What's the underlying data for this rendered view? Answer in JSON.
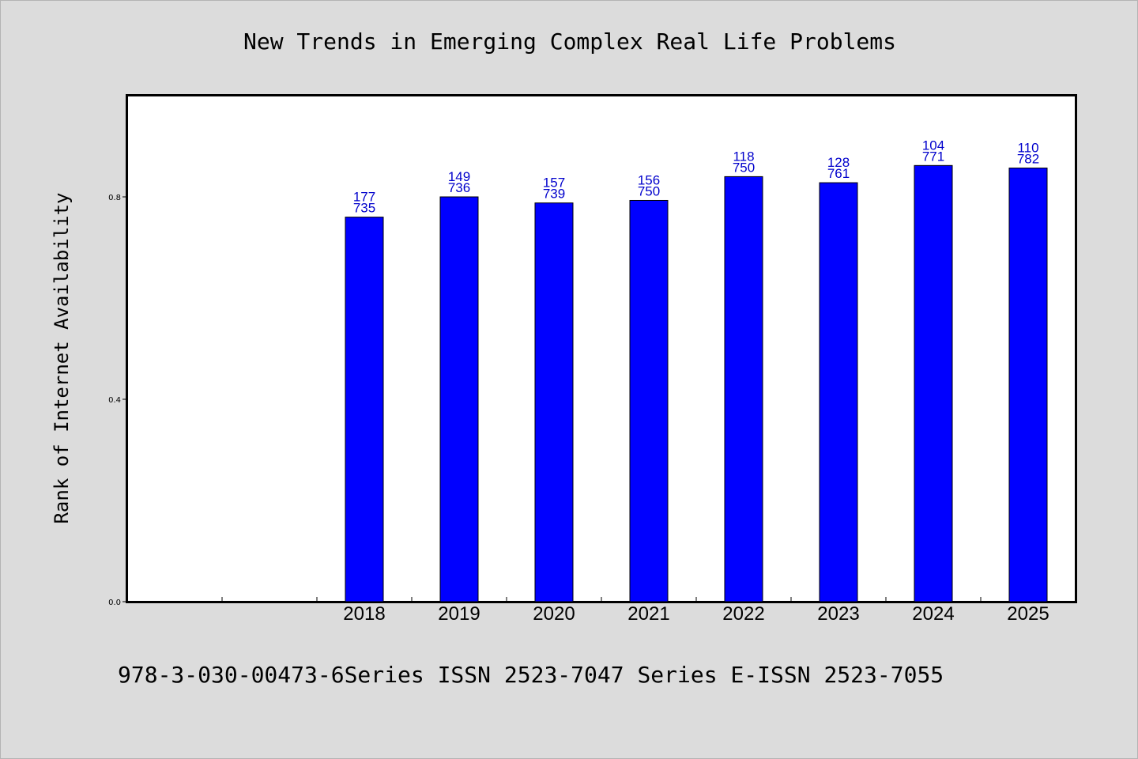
{
  "chart_data": {
    "type": "bar",
    "title": "New Trends in Emerging Complex Real Life Problems",
    "xlabel": "",
    "ylabel": "Rank of Internet Availability",
    "ylim": [
      0,
      1.0
    ],
    "yticks": [
      "0.0",
      "0.4",
      "0.8"
    ],
    "x_slots": [
      "",
      "",
      "2018",
      "2019",
      "2020",
      "2021",
      "2022",
      "2023",
      "2024",
      "2025"
    ],
    "categories": [
      "2018",
      "2019",
      "2020",
      "2021",
      "2022",
      "2023",
      "2024",
      "2025"
    ],
    "values": [
      0.76,
      0.8,
      0.788,
      0.793,
      0.84,
      0.828,
      0.862,
      0.857
    ],
    "data_labels": [
      [
        "177",
        "735"
      ],
      [
        "149",
        "736"
      ],
      [
        "157",
        "739"
      ],
      [
        "156",
        "750"
      ],
      [
        "118",
        "750"
      ],
      [
        "128",
        "761"
      ],
      [
        "104",
        "771"
      ],
      [
        "110",
        "782"
      ]
    ],
    "bar_color": "#0000ff",
    "label_color": "#0000cc",
    "grid": false,
    "legend": "none"
  },
  "footer": {
    "text": "978-3-030-00473-6Series ISSN 2523-7047 Series E-ISSN 2523-7055"
  }
}
